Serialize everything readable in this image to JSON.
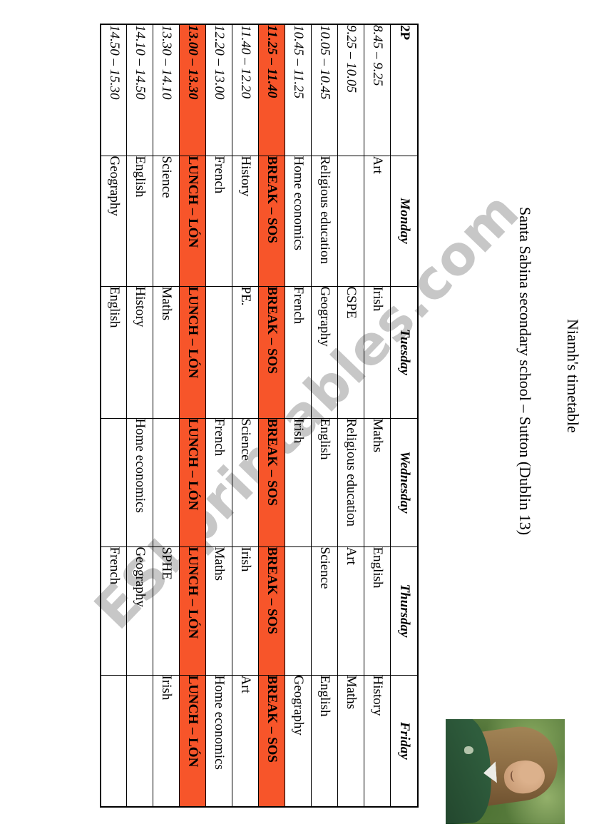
{
  "page": {
    "title": "Niamh's timetable",
    "subtitle": "Santa Sabina secondary school – Sutton (Dublin 13)",
    "watermark": "ESLprintables.com",
    "accent_orange": "#F7552A"
  },
  "timetable": {
    "class_label": "2P",
    "days": [
      "Monday",
      "Tuesday",
      "Wednesday",
      "Thursday",
      "Friday"
    ],
    "break_label": "BREAK – SOS",
    "lunch_label": "LUNCH – LÓN",
    "rows": [
      {
        "time": "8.45 – 9.25",
        "type": "class",
        "cells": [
          "Art",
          "Irish",
          "Maths",
          "English",
          "History"
        ]
      },
      {
        "time": "9.25 – 10.05",
        "type": "class",
        "cells": [
          "",
          "CSPE",
          "Religious education",
          "Art",
          "Maths"
        ]
      },
      {
        "time": "10.05 – 10.45",
        "type": "class",
        "cells": [
          "Religious education",
          "Geography",
          "English",
          "Science",
          "English"
        ]
      },
      {
        "time": "10.45 – 11.25",
        "type": "class",
        "cells": [
          "Home economics",
          "French",
          "Irish",
          "",
          "Geography"
        ]
      },
      {
        "time": "11.25 – 11.40",
        "type": "break",
        "cells": [
          "BREAK – SOS",
          "BREAK – SOS",
          "BREAK – SOS",
          "BREAK – SOS",
          "BREAK – SOS"
        ]
      },
      {
        "time": "11.40 – 12.20",
        "type": "class",
        "cells": [
          "History",
          "PE.",
          "Science",
          "Irish",
          "Art"
        ]
      },
      {
        "time": "12.20 – 13.00",
        "type": "class",
        "cells": [
          "French",
          "",
          "French",
          "Maths",
          "Home economics"
        ]
      },
      {
        "time": "13.00 – 13.30",
        "type": "break",
        "cells": [
          "LUNCH – LÓN",
          "LUNCH – LÓN",
          "LUNCH – LÓN",
          "LUNCH – LÓN",
          "LUNCH – LÓN"
        ]
      },
      {
        "time": "13.30 – 14.10",
        "type": "class",
        "cells": [
          "Science",
          "Maths",
          "",
          "SPHE",
          "Irish"
        ]
      },
      {
        "time": "14.10 – 14.50",
        "type": "class",
        "cells": [
          "English",
          "History",
          "Home economics",
          "Geography",
          ""
        ]
      },
      {
        "time": "14.50 – 15.30",
        "type": "class",
        "cells": [
          "Geography",
          "English",
          "",
          "French",
          ""
        ]
      }
    ]
  },
  "photo": {
    "description": "Smiling student with long brown hair wearing a dark green school jumper, outdoors in front of green foliage"
  }
}
